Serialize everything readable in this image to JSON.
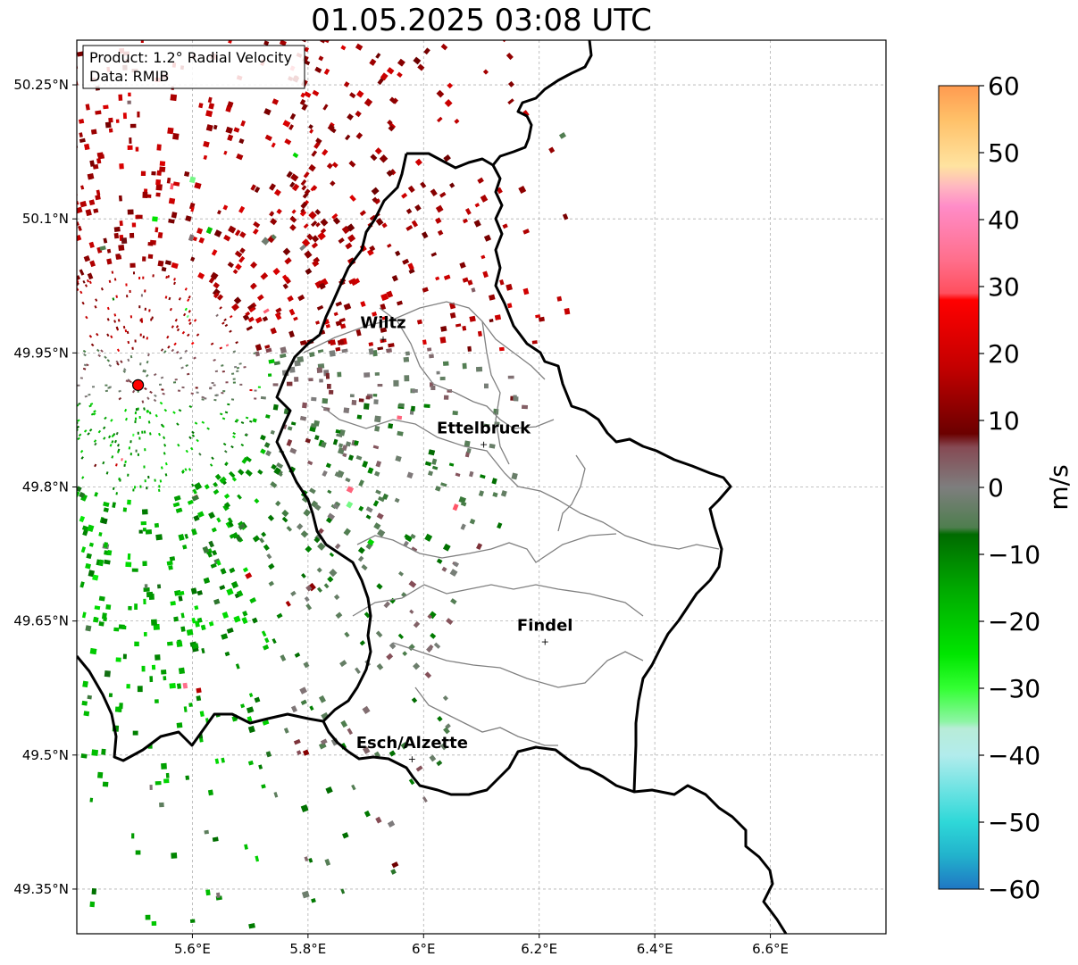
{
  "title": "01.05.2025 03:08 UTC",
  "info_box": {
    "product": "Product: 1.2° Radial Velocity",
    "data": "Data: RMIB"
  },
  "axes": {
    "lon_range": [
      5.4,
      6.8
    ],
    "lat_range": [
      49.3,
      50.3
    ],
    "x_ticks": [
      {
        "value": 5.6,
        "label": "5.6°E"
      },
      {
        "value": 5.8,
        "label": "5.8°E"
      },
      {
        "value": 6.0,
        "label": "6°E"
      },
      {
        "value": 6.2,
        "label": "6.2°E"
      },
      {
        "value": 6.4,
        "label": "6.4°E"
      },
      {
        "value": 6.6,
        "label": "6.6°E"
      }
    ],
    "y_ticks": [
      {
        "value": 50.25,
        "label": "50.25°N"
      },
      {
        "value": 50.1,
        "label": "50.1°N"
      },
      {
        "value": 49.95,
        "label": "49.95°N"
      },
      {
        "value": 49.8,
        "label": "49.8°N"
      },
      {
        "value": 49.65,
        "label": "49.65°N"
      },
      {
        "value": 49.5,
        "label": "49.5°N"
      },
      {
        "value": 49.35,
        "label": "49.35°N"
      }
    ],
    "grid": true
  },
  "radar_site": {
    "lon": 5.506,
    "lat": 49.914,
    "color": "#ff0000"
  },
  "cities": [
    {
      "name": "Wiltz",
      "lon": 5.93,
      "lat": 49.966
    },
    {
      "name": "Ettelbruck",
      "lon": 6.104,
      "lat": 49.848
    },
    {
      "name": "Findel",
      "lon": 6.21,
      "lat": 49.627
    },
    {
      "name": "Esch/Alzette",
      "lon": 5.98,
      "lat": 49.496
    }
  ],
  "colorbar": {
    "label": "m/s",
    "min": -60,
    "max": 60,
    "ticks": [
      {
        "value": 60,
        "label": "60"
      },
      {
        "value": 50,
        "label": "50"
      },
      {
        "value": 40,
        "label": "40"
      },
      {
        "value": 30,
        "label": "30"
      },
      {
        "value": 20,
        "label": "20"
      },
      {
        "value": 10,
        "label": "10"
      },
      {
        "value": 0,
        "label": "0"
      },
      {
        "value": -10,
        "label": "−10"
      },
      {
        "value": -20,
        "label": "−20"
      },
      {
        "value": -30,
        "label": "−30"
      },
      {
        "value": -40,
        "label": "−40"
      },
      {
        "value": -50,
        "label": "−50"
      },
      {
        "value": -60,
        "label": "−60"
      }
    ],
    "stops": [
      {
        "v": -60,
        "color": "#1f77c4"
      },
      {
        "v": -55,
        "color": "#22b2cc"
      },
      {
        "v": -50,
        "color": "#2ed8d8"
      },
      {
        "v": -45,
        "color": "#6fe3e3"
      },
      {
        "v": -40,
        "color": "#b2ecec"
      },
      {
        "v": -36,
        "color": "#b8ecd8"
      },
      {
        "v": -35,
        "color": "#8ef5a5"
      },
      {
        "v": -30,
        "color": "#33ff33"
      },
      {
        "v": -25,
        "color": "#00e600"
      },
      {
        "v": -15,
        "color": "#00a800"
      },
      {
        "v": -7,
        "color": "#006b00"
      },
      {
        "v": -6,
        "color": "#4e7e4e"
      },
      {
        "v": 0,
        "color": "#7e7e7e"
      },
      {
        "v": 6,
        "color": "#864a54"
      },
      {
        "v": 8,
        "color": "#6b0000"
      },
      {
        "v": 18,
        "color": "#c40000"
      },
      {
        "v": 28,
        "color": "#ff0000"
      },
      {
        "v": 29,
        "color": "#ff4f5e"
      },
      {
        "v": 34,
        "color": "#ff6f8c"
      },
      {
        "v": 42,
        "color": "#ff8cc8"
      },
      {
        "v": 45,
        "color": "#ffb8c0"
      },
      {
        "v": 48,
        "color": "#ffe3a0"
      },
      {
        "v": 55,
        "color": "#ffc068"
      },
      {
        "v": 60,
        "color": "#ff9a50"
      }
    ]
  }
}
